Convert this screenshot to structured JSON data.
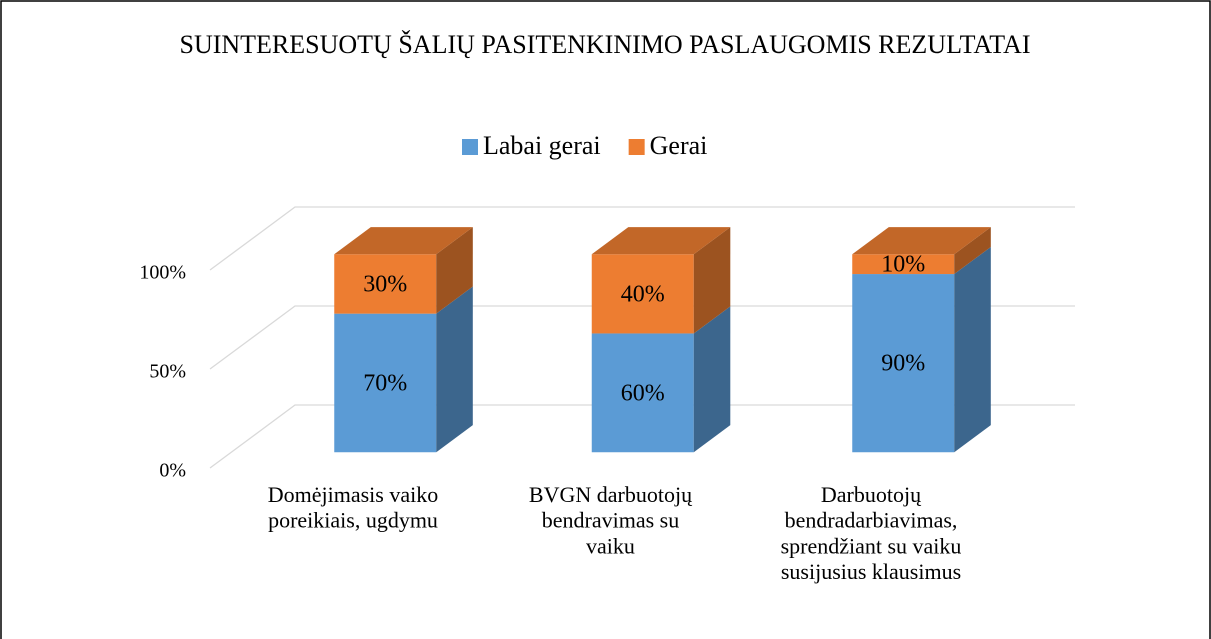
{
  "chart_data": {
    "type": "bar3d_stacked",
    "title": "SUINTERESUOTŲ ŠALIŲ PASITENKINIMO PASLAUGOMIS REZULTATAI",
    "categories": [
      "Domėjimasis vaiko poreikiais, ugdymu",
      "BVGN darbuotojų bendravimas su vaiku",
      "Darbuotojų bendradarbiavimas, sprendžiant su vaiku susijusius klausimus"
    ],
    "series": [
      {
        "name": "Labai gerai",
        "color": "#5b9bd5",
        "values": [
          70,
          60,
          90
        ],
        "value_labels": [
          "70%",
          "60%",
          "90%"
        ]
      },
      {
        "name": "Gerai",
        "color": "#ed7d31",
        "values": [
          30,
          40,
          10
        ],
        "value_labels": [
          "30%",
          "40%",
          "10%"
        ]
      }
    ],
    "ylim": [
      0,
      100
    ],
    "yticks": [
      {
        "value": 0,
        "label": "0%"
      },
      {
        "value": 50,
        "label": "50%"
      },
      {
        "value": 100,
        "label": "100%"
      }
    ],
    "grid": true,
    "legend": "top"
  }
}
